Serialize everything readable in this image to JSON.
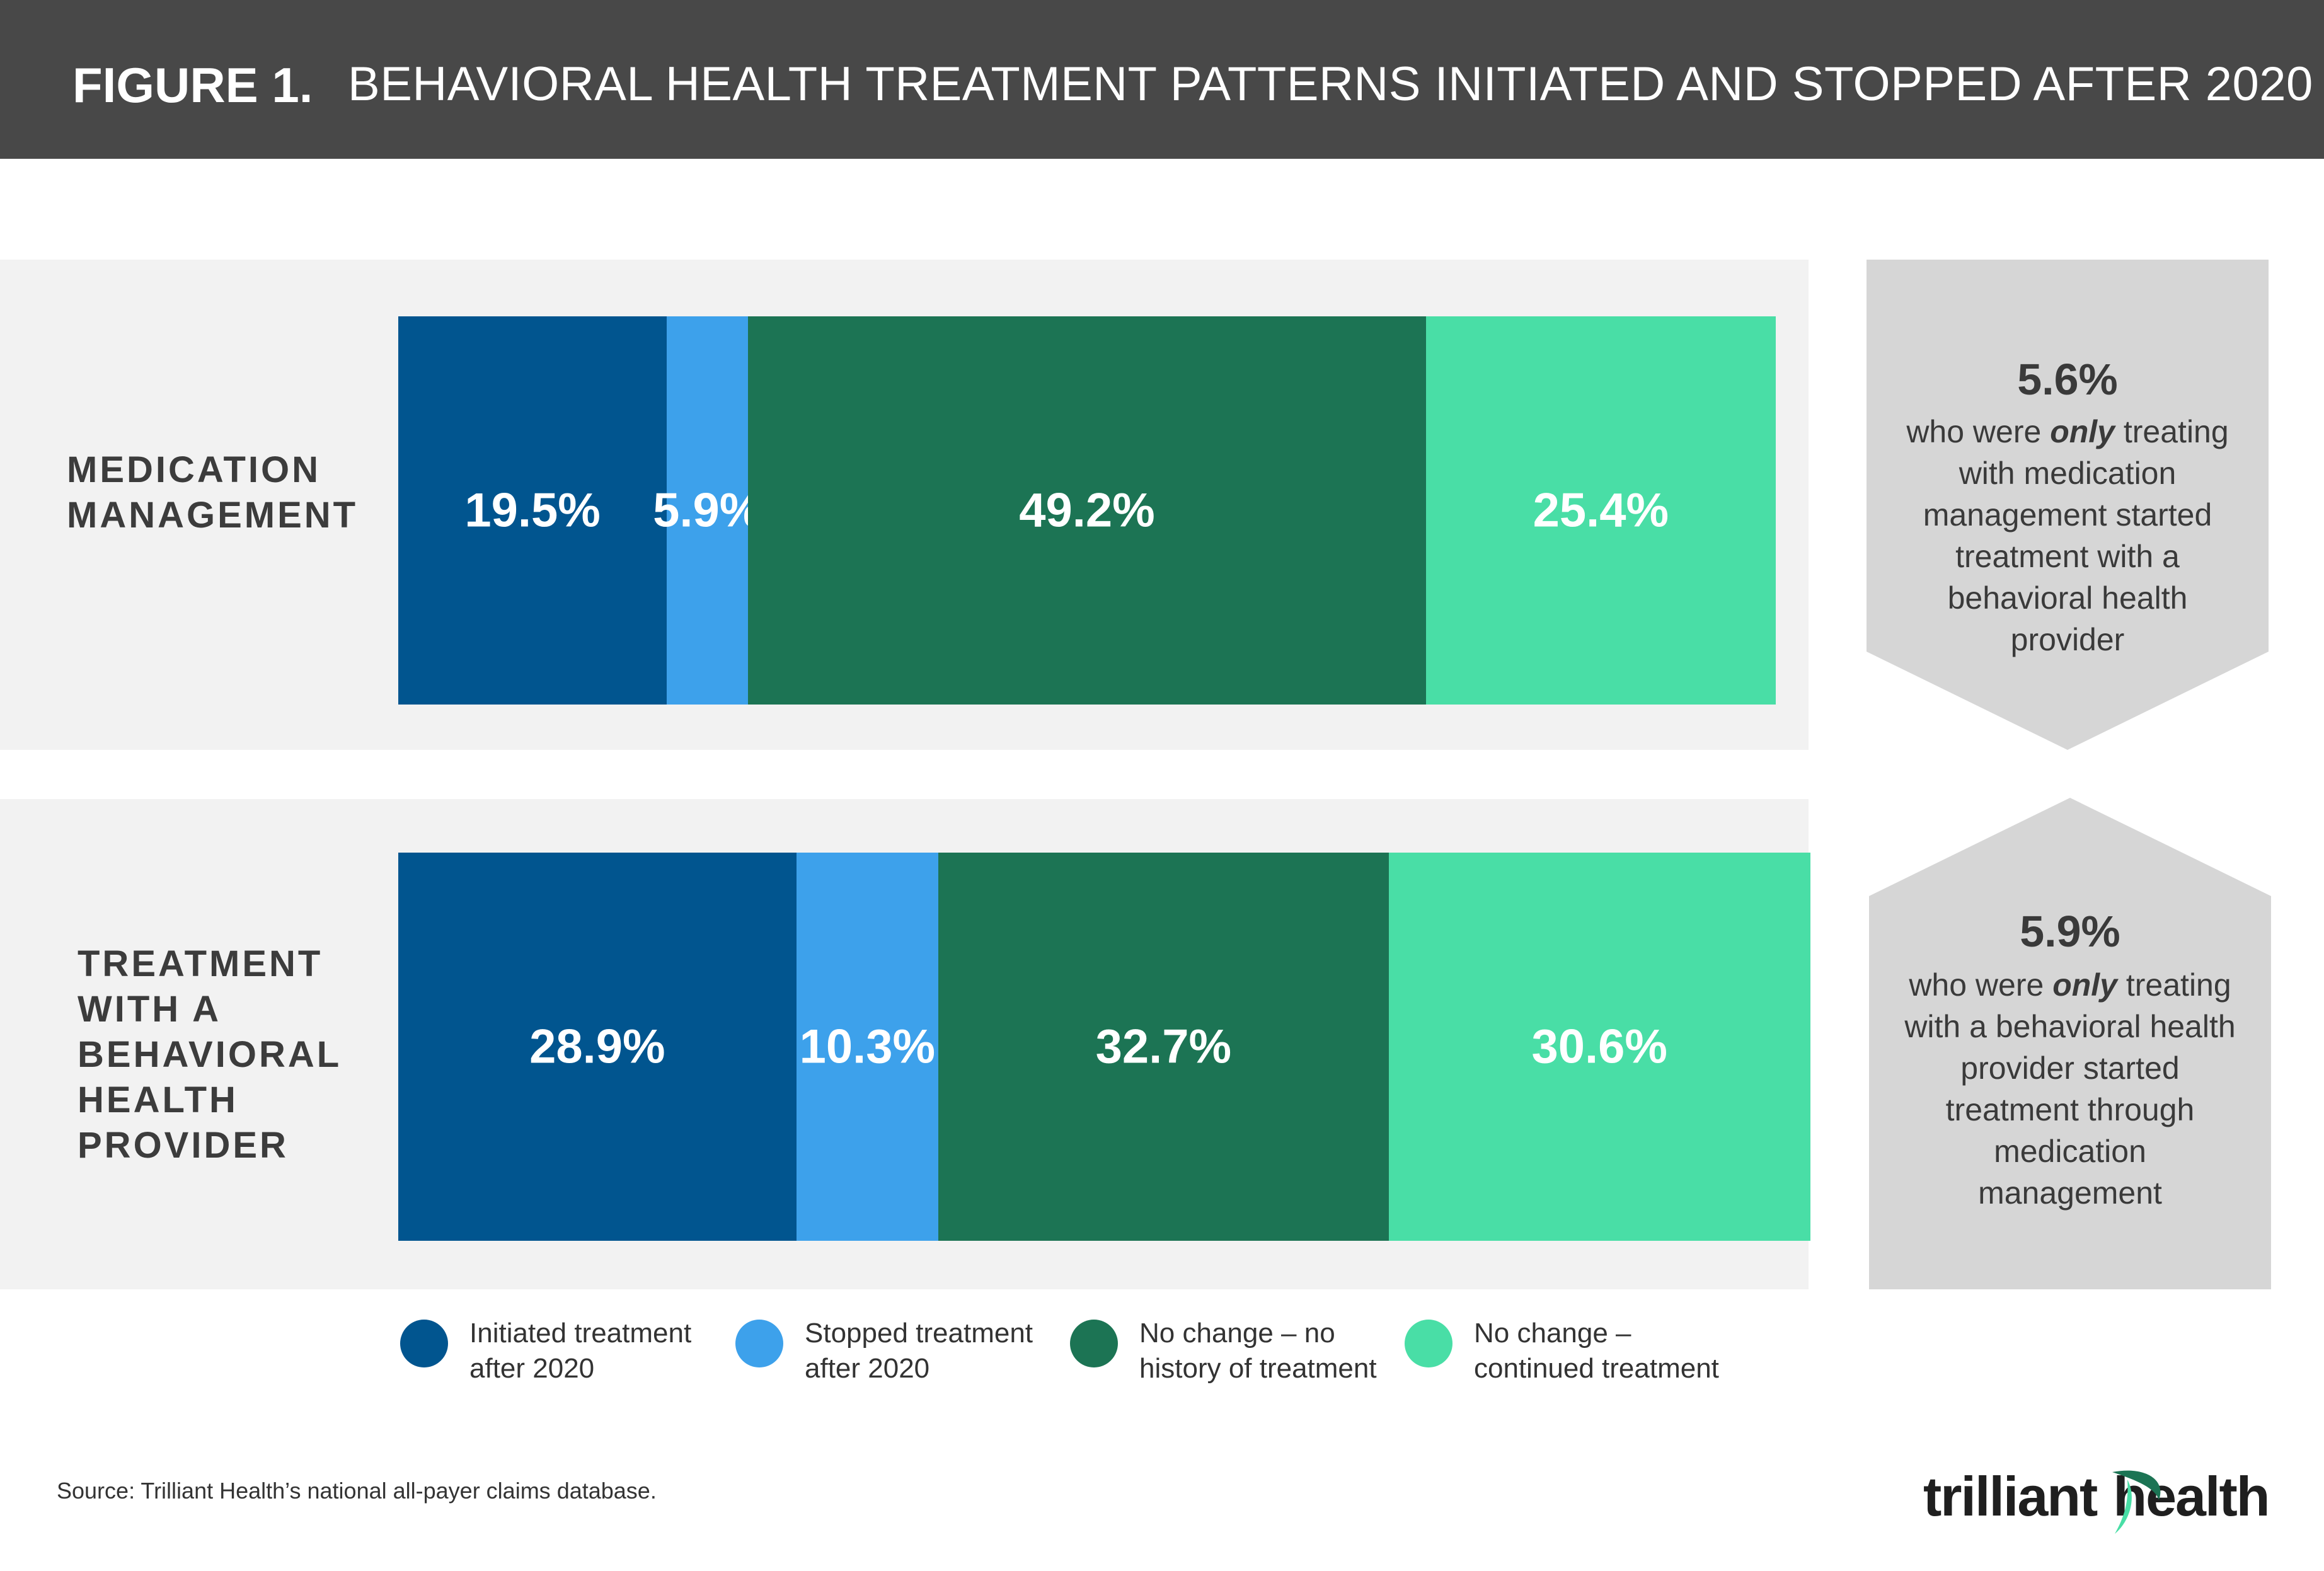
{
  "header": {
    "figure_label": "FIGURE 1.",
    "title": "BEHAVIORAL HEALTH TREATMENT PATTERNS INITIATED AND STOPPED AFTER 2020"
  },
  "colors": {
    "header_bg": "#484848",
    "initiated": "#01558F",
    "stopped": "#3DA1EB",
    "no_history": "#1C7454",
    "continued": "#49DEA6",
    "callout_bg": "#d6d6d6",
    "panel_bg": "#f2f2f2"
  },
  "chart_data": {
    "type": "bar",
    "orientation": "horizontal",
    "stacked": true,
    "categories": [
      [
        "MEDICATION",
        "MANAGEMENT"
      ],
      [
        "TREATMENT",
        "WITH A",
        "BEHAVIORAL",
        "HEALTH",
        "PROVIDER"
      ]
    ],
    "series": [
      {
        "name": "Initiated treatment after 2020",
        "values": [
          19.5,
          28.9
        ]
      },
      {
        "name": "Stopped treatment after 2020",
        "values": [
          5.9,
          10.3
        ]
      },
      {
        "name": "No change – no history of treatment",
        "values": [
          49.2,
          32.7
        ]
      },
      {
        "name": "No change – continued treatment",
        "values": [
          25.4,
          30.6
        ]
      }
    ],
    "data_labels": [
      [
        "19.5%",
        "5.9%",
        "49.2%",
        "25.4%"
      ],
      [
        "28.9%",
        "10.3%",
        "32.7%",
        "30.6%"
      ]
    ],
    "xlim": [
      0,
      100
    ],
    "legend_position": "bottom",
    "grid": false
  },
  "legend": [
    {
      "lines": [
        "Initiated treatment",
        "after 2020"
      ]
    },
    {
      "lines": [
        "Stopped treatment",
        "after 2020"
      ]
    },
    {
      "lines": [
        "No change – no",
        "history of treatment"
      ]
    },
    {
      "lines": [
        "No change –",
        "continued treatment"
      ]
    }
  ],
  "callouts": [
    {
      "value": "5.6%",
      "lines": [
        "who were |only| treating",
        "with medication",
        "management started",
        "treatment with a",
        "behavioral health",
        "provider"
      ]
    },
    {
      "value": "5.9%",
      "lines": [
        "who were |only| treating",
        "with a behavioral health",
        "provider started",
        "treatment through",
        "medication",
        "management"
      ]
    }
  ],
  "source": "Source: Trilliant Health’s national all-payer claims database.",
  "logo": {
    "text": "trilliant health",
    "part1": "trilliant",
    "part2": "health"
  }
}
